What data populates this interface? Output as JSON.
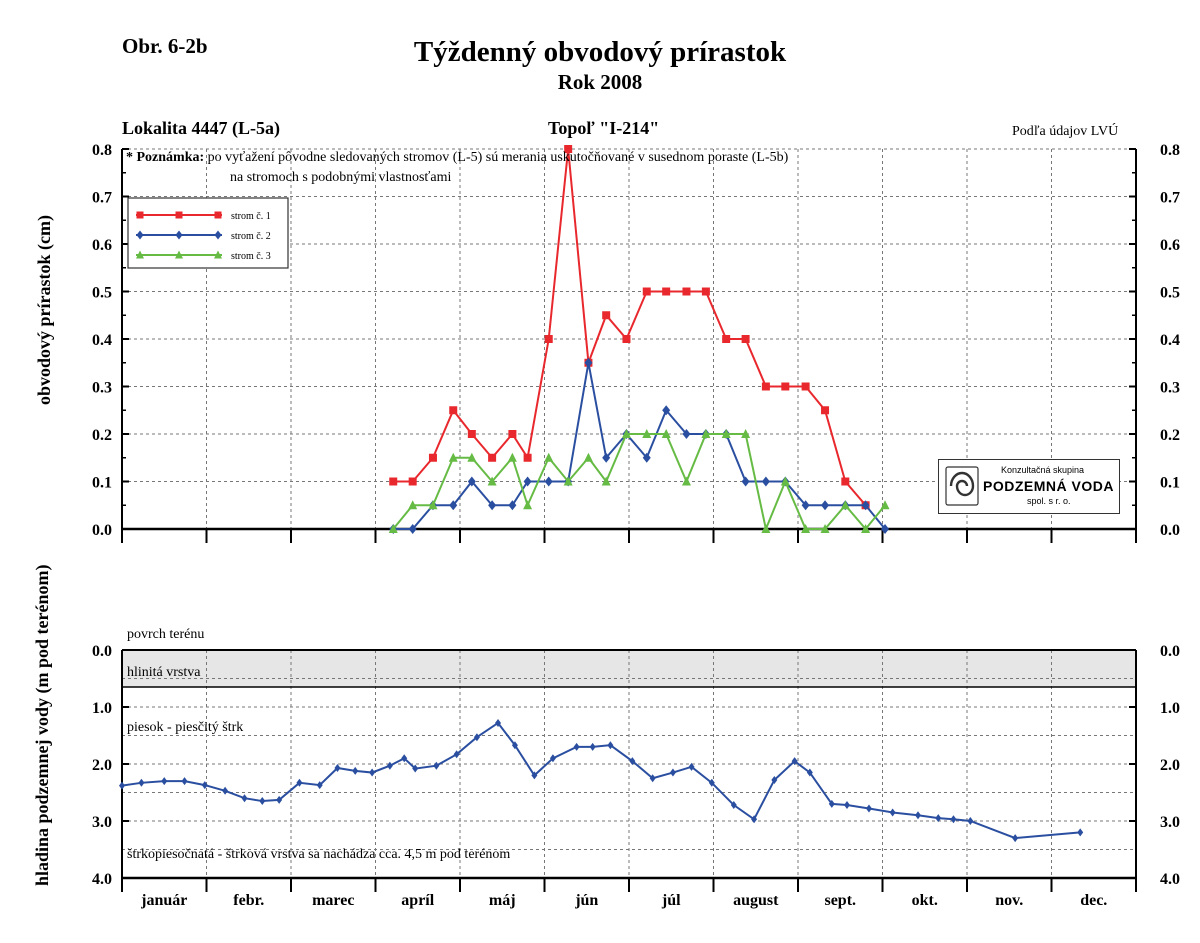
{
  "figure_label": "Obr. 6-2b",
  "title": "Týždenný obvodový prírastok",
  "subtitle": "Rok 2008",
  "location": "Lokalita 4447 (L-5a)",
  "tree": "Topoľ \"I-214\"",
  "source_note": "Podľa údajov LVÚ",
  "note": {
    "label": "* Poznámka:",
    "line1": "po vyťažení pôvodne sledovaných stromov (L-5) sú merania uskutočňované v susednom poraste (L-5b)",
    "line2": "na stromoch s podobnými vlastnosťami"
  },
  "logo": {
    "line1": "Konzultačná skupina",
    "line2": "PODZEMNÁ VODA",
    "line3": "spol. s r. o."
  },
  "months": [
    "január",
    "febr.",
    "marec",
    "apríl",
    "máj",
    "jún",
    "júl",
    "august",
    "sept.",
    "okt.",
    "nov.",
    "dec."
  ],
  "colors": {
    "strom1": "#e8282d",
    "strom2": "#2b4fa0",
    "strom3": "#66bb44",
    "ground": "#2b4fa0",
    "clay_fill": "#e6e6e6"
  },
  "chart_data": [
    {
      "type": "line",
      "ylabel": "obvodový prírastok (cm)",
      "ylim": [
        0,
        0.8
      ],
      "yticks": [
        "0.0",
        "0.1",
        "0.2",
        "0.3",
        "0.4",
        "0.5",
        "0.6",
        "0.7",
        "0.8"
      ],
      "xlim": [
        0,
        12
      ],
      "x_unit": "month",
      "grid": true,
      "legend": "top-left",
      "series": [
        {
          "name": "strom č. 1",
          "color_key": "strom1",
          "marker": "square",
          "points": [
            [
              3.21,
              0.1
            ],
            [
              3.44,
              0.1
            ],
            [
              3.68,
              0.15
            ],
            [
              3.92,
              0.25
            ],
            [
              4.14,
              0.2
            ],
            [
              4.38,
              0.15
            ],
            [
              4.62,
              0.2
            ],
            [
              4.8,
              0.15
            ],
            [
              5.05,
              0.4
            ],
            [
              5.28,
              0.8
            ],
            [
              5.52,
              0.35
            ],
            [
              5.73,
              0.45
            ],
            [
              5.97,
              0.4
            ],
            [
              6.21,
              0.5
            ],
            [
              6.44,
              0.5
            ],
            [
              6.68,
              0.5
            ],
            [
              6.91,
              0.5
            ],
            [
              7.15,
              0.4
            ],
            [
              7.38,
              0.4
            ],
            [
              7.62,
              0.3
            ],
            [
              7.85,
              0.3
            ],
            [
              8.09,
              0.3
            ],
            [
              8.32,
              0.25
            ],
            [
              8.56,
              0.1
            ],
            [
              8.8,
              0.05
            ]
          ]
        },
        {
          "name": "strom č. 2",
          "color_key": "strom2",
          "marker": "diamond",
          "points": [
            [
              3.21,
              0.0
            ],
            [
              3.44,
              0.0
            ],
            [
              3.68,
              0.05
            ],
            [
              3.92,
              0.05
            ],
            [
              4.14,
              0.1
            ],
            [
              4.38,
              0.05
            ],
            [
              4.62,
              0.05
            ],
            [
              4.8,
              0.1
            ],
            [
              5.05,
              0.1
            ],
            [
              5.28,
              0.1
            ],
            [
              5.52,
              0.35
            ],
            [
              5.73,
              0.15
            ],
            [
              5.97,
              0.2
            ],
            [
              6.21,
              0.15
            ],
            [
              6.44,
              0.25
            ],
            [
              6.68,
              0.2
            ],
            [
              6.91,
              0.2
            ],
            [
              7.15,
              0.2
            ],
            [
              7.38,
              0.1
            ],
            [
              7.62,
              0.1
            ],
            [
              7.85,
              0.1
            ],
            [
              8.09,
              0.05
            ],
            [
              8.32,
              0.05
            ],
            [
              8.56,
              0.05
            ],
            [
              8.8,
              0.05
            ],
            [
              9.03,
              0.0
            ]
          ]
        },
        {
          "name": "strom č. 3",
          "color_key": "strom3",
          "marker": "triangle",
          "points": [
            [
              3.21,
              0.0
            ],
            [
              3.44,
              0.05
            ],
            [
              3.68,
              0.05
            ],
            [
              3.92,
              0.15
            ],
            [
              4.14,
              0.15
            ],
            [
              4.38,
              0.1
            ],
            [
              4.62,
              0.15
            ],
            [
              4.8,
              0.05
            ],
            [
              5.05,
              0.15
            ],
            [
              5.28,
              0.1
            ],
            [
              5.52,
              0.15
            ],
            [
              5.73,
              0.1
            ],
            [
              5.97,
              0.2
            ],
            [
              6.21,
              0.2
            ],
            [
              6.44,
              0.2
            ],
            [
              6.68,
              0.1
            ],
            [
              6.91,
              0.2
            ],
            [
              7.15,
              0.2
            ],
            [
              7.38,
              0.2
            ],
            [
              7.62,
              0.0
            ],
            [
              7.85,
              0.1
            ],
            [
              8.09,
              0.0
            ],
            [
              8.32,
              0.0
            ],
            [
              8.56,
              0.05
            ],
            [
              8.8,
              0.0
            ],
            [
              9.03,
              0.05
            ]
          ]
        }
      ]
    },
    {
      "type": "line",
      "ylabel": "hladina podzemnej vody (m pod terénom)",
      "ylim": [
        0,
        4
      ],
      "y_inverted": true,
      "yticks": [
        "0.0",
        "1.0",
        "2.0",
        "3.0",
        "4.0"
      ],
      "xlim": [
        0,
        12
      ],
      "x_unit": "month",
      "grid": true,
      "layers": [
        {
          "label": "povrch terénu",
          "depth": 0.0
        },
        {
          "label": "hlinitá vrstva",
          "from": 0.0,
          "to": 0.65
        },
        {
          "label": "piesok - piesčitý štrk",
          "depth": 1.4
        },
        {
          "label": "štrkopiesočnatá - štrková vrstva sa nachádza cca. 4,5 m pod terénom",
          "depth": 3.6
        }
      ],
      "series": [
        {
          "name": "",
          "color_key": "ground",
          "marker": "diamond",
          "points": [
            [
              0.0,
              2.38
            ],
            [
              0.23,
              2.33
            ],
            [
              0.5,
              2.3
            ],
            [
              0.74,
              2.3
            ],
            [
              0.98,
              2.37
            ],
            [
              1.22,
              2.47
            ],
            [
              1.45,
              2.6
            ],
            [
              1.66,
              2.65
            ],
            [
              1.86,
              2.63
            ],
            [
              2.1,
              2.33
            ],
            [
              2.34,
              2.37
            ],
            [
              2.55,
              2.07
            ],
            [
              2.76,
              2.12
            ],
            [
              2.96,
              2.15
            ],
            [
              3.17,
              2.03
            ],
            [
              3.34,
              1.9
            ],
            [
              3.47,
              2.08
            ],
            [
              3.72,
              2.03
            ],
            [
              3.96,
              1.83
            ],
            [
              4.2,
              1.53
            ],
            [
              4.45,
              1.28
            ],
            [
              4.65,
              1.67
            ],
            [
              4.88,
              2.2
            ],
            [
              5.1,
              1.9
            ],
            [
              5.38,
              1.7
            ],
            [
              5.57,
              1.7
            ],
            [
              5.78,
              1.67
            ],
            [
              6.04,
              1.95
            ],
            [
              6.28,
              2.25
            ],
            [
              6.52,
              2.15
            ],
            [
              6.74,
              2.05
            ],
            [
              6.98,
              2.33
            ],
            [
              7.24,
              2.72
            ],
            [
              7.48,
              2.97
            ],
            [
              7.72,
              2.28
            ],
            [
              7.96,
              1.95
            ],
            [
              8.14,
              2.15
            ],
            [
              8.4,
              2.7
            ],
            [
              8.58,
              2.72
            ],
            [
              8.84,
              2.78
            ],
            [
              9.12,
              2.85
            ],
            [
              9.42,
              2.9
            ],
            [
              9.66,
              2.95
            ],
            [
              9.84,
              2.97
            ],
            [
              10.04,
              3.0
            ],
            [
              10.57,
              3.3
            ],
            [
              11.34,
              3.2
            ]
          ]
        }
      ]
    }
  ]
}
